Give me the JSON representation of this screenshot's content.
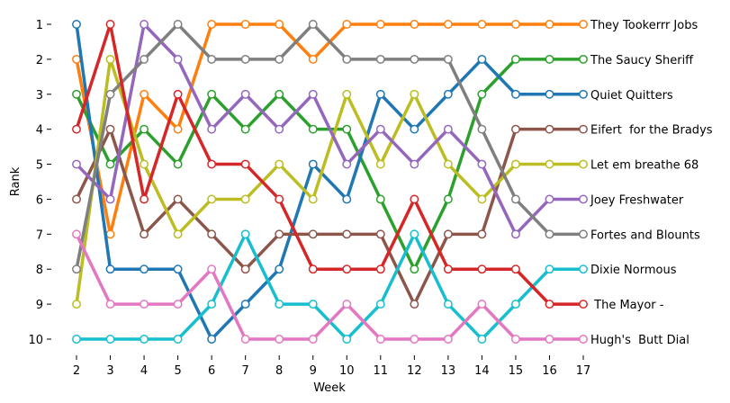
{
  "chart_data": {
    "type": "line",
    "title": "",
    "xlabel": "Week",
    "ylabel": "Rank",
    "x": [
      2,
      3,
      4,
      5,
      6,
      7,
      8,
      9,
      10,
      11,
      12,
      13,
      14,
      15,
      16,
      17
    ],
    "xlim": [
      2,
      17
    ],
    "ylim": [
      10,
      1
    ],
    "y_inverted": true,
    "y_ticks": [
      1,
      2,
      3,
      4,
      5,
      6,
      7,
      8,
      9,
      10
    ],
    "grid": false,
    "legend": "series labels at right end of lines",
    "series": [
      {
        "name": "They Tookerrr Jobs",
        "color": "#ff7f0e",
        "values": [
          2,
          7,
          3,
          4,
          1,
          1,
          1,
          2,
          1,
          1,
          1,
          1,
          1,
          1,
          1,
          1
        ]
      },
      {
        "name": "The Saucy Sheriff",
        "color": "#2ca02c",
        "values": [
          3,
          5,
          4,
          5,
          3,
          4,
          3,
          4,
          4,
          6,
          8,
          6,
          3,
          2,
          2,
          2
        ]
      },
      {
        "name": "Quiet Quitters",
        "color": "#1f77b4",
        "values": [
          1,
          8,
          8,
          8,
          10,
          9,
          8,
          5,
          6,
          3,
          4,
          3,
          2,
          3,
          3,
          3
        ]
      },
      {
        "name": "Eifert  for the Bradys",
        "color": "#8c564b",
        "values": [
          6,
          4,
          7,
          6,
          7,
          8,
          7,
          7,
          7,
          7,
          9,
          7,
          7,
          4,
          4,
          4
        ]
      },
      {
        "name": "Let em breathe 68",
        "color": "#bcbd22",
        "values": [
          9,
          2,
          5,
          7,
          6,
          6,
          5,
          6,
          3,
          5,
          3,
          5,
          6,
          5,
          5,
          5
        ]
      },
      {
        "name": "Joey Freshwater",
        "color": "#9467bd",
        "values": [
          5,
          6,
          1,
          2,
          4,
          3,
          4,
          3,
          5,
          4,
          5,
          4,
          5,
          7,
          6,
          6
        ]
      },
      {
        "name": "Fortes and Blounts",
        "color": "#7f7f7f",
        "values": [
          8,
          3,
          2,
          1,
          2,
          2,
          2,
          1,
          2,
          2,
          2,
          2,
          4,
          6,
          7,
          7
        ]
      },
      {
        "name": "Dixie Normous",
        "color": "#17becf",
        "values": [
          10,
          10,
          10,
          10,
          9,
          7,
          9,
          9,
          10,
          9,
          7,
          9,
          10,
          9,
          8,
          8
        ]
      },
      {
        "name": " The Mayor -",
        "color": "#d62728",
        "values": [
          4,
          1,
          6,
          3,
          5,
          5,
          6,
          8,
          8,
          8,
          6,
          8,
          8,
          8,
          9,
          9
        ]
      },
      {
        "name": "Hugh's  Butt Dial",
        "color": "#e377c2",
        "values": [
          7,
          9,
          9,
          9,
          8,
          10,
          10,
          10,
          9,
          10,
          10,
          10,
          9,
          10,
          10,
          10
        ]
      }
    ]
  }
}
